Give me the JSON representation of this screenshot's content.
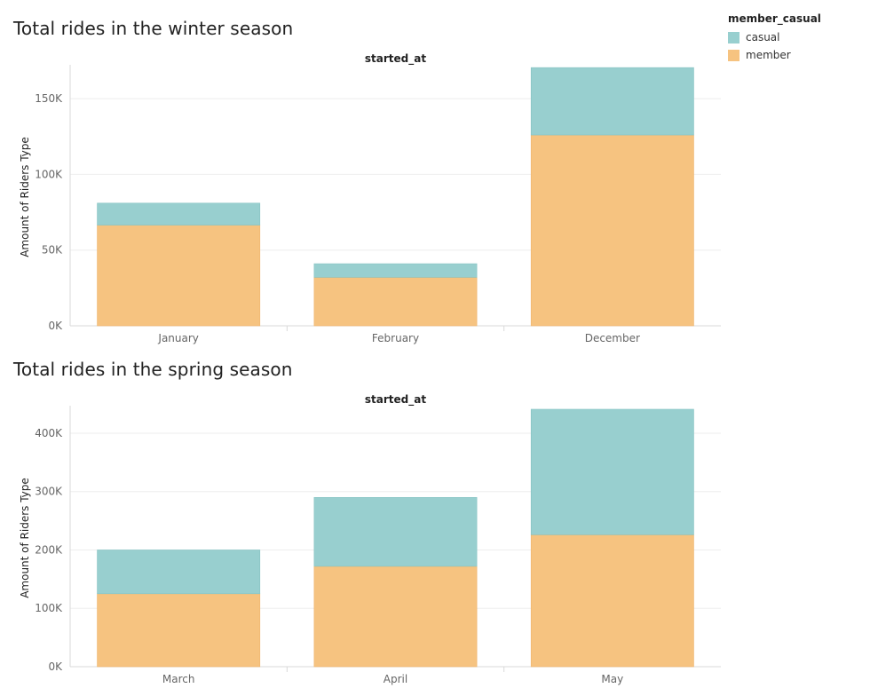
{
  "colors": {
    "casual": "#98cfcf",
    "member": "#f6c380",
    "axis": "#d9d9d9",
    "grid": "#eeeeee",
    "tick_text": "#666666"
  },
  "legend": {
    "title": "member_casual",
    "items": [
      {
        "label": "casual",
        "color": "#98cfcf"
      },
      {
        "label": "member",
        "color": "#f6c380"
      }
    ]
  },
  "chart_data": [
    {
      "type": "bar",
      "stacked": true,
      "title": "Total rides in the winter season",
      "column_header": "started_at",
      "ylabel": "Amount of Riders Type",
      "categories": [
        "January",
        "February",
        "December"
      ],
      "series": [
        {
          "name": "member",
          "values": [
            66500,
            32000,
            126000
          ]
        },
        {
          "name": "casual",
          "values": [
            14500,
            9000,
            44500
          ]
        }
      ],
      "ylim": [
        0,
        170000
      ],
      "yticks": [
        0,
        50000,
        100000,
        150000
      ],
      "ytick_labels": [
        "0K",
        "50K",
        "100K",
        "150K"
      ],
      "grid": true
    },
    {
      "type": "bar",
      "stacked": true,
      "title": "Total rides in the spring season",
      "column_header": "started_at",
      "ylabel": "Amount of Riders Type",
      "categories": [
        "March",
        "April",
        "May"
      ],
      "series": [
        {
          "name": "member",
          "values": [
            125000,
            172000,
            226000
          ]
        },
        {
          "name": "casual",
          "values": [
            75000,
            118000,
            215000
          ]
        }
      ],
      "ylim": [
        0,
        441000
      ],
      "yticks": [
        0,
        100000,
        200000,
        300000,
        400000
      ],
      "ytick_labels": [
        "0K",
        "100K",
        "200K",
        "300K",
        "400K"
      ],
      "grid": true
    }
  ]
}
